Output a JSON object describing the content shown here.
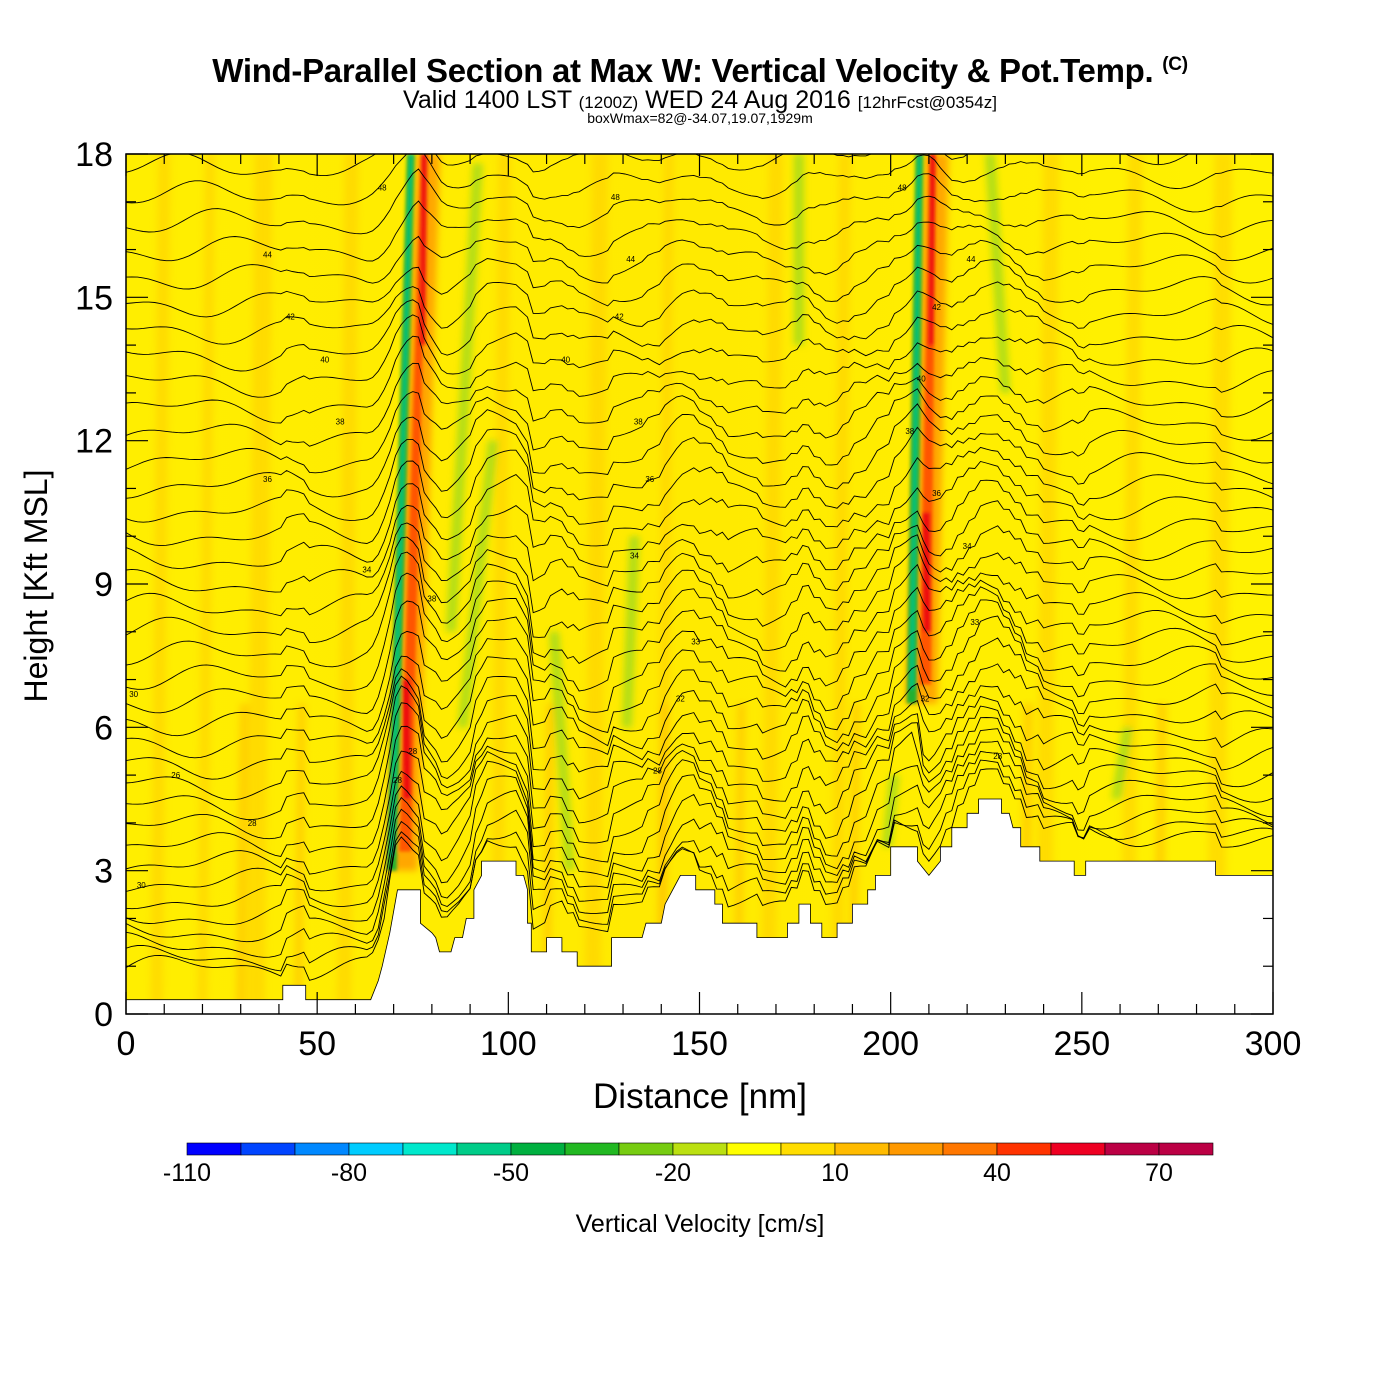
{
  "title": {
    "main": "Wind-Parallel Section at Max W: Vertical Velocity & Pot.Temp.",
    "copyright": "(C)",
    "valid_prefix": "Valid 1400 LST",
    "utc": "(1200Z)",
    "valid_date": "WED 24 Aug 2016",
    "forecast": "[12hrFcst@0354z]",
    "box": "boxWmax=82@-34.07,19.07,1929m"
  },
  "colors": {
    "scale": [
      "#0000ff",
      "#0044ff",
      "#0088ff",
      "#00ccff",
      "#00e8cc",
      "#00cc88",
      "#00b040",
      "#22b822",
      "#77cc11",
      "#bbe011",
      "#ffff00",
      "#ffdd00",
      "#ffbb00",
      "#ff9900",
      "#ff7700",
      "#ff3300",
      "#ee0022",
      "#bb0044"
    ],
    "terrain": "#ffffff",
    "contour": "#000000"
  },
  "chart_data": {
    "type": "heatmap",
    "xlabel": "Distance [nm]",
    "ylabel": "Height [Kft MSL]",
    "xlim": [
      0,
      300
    ],
    "ylim": [
      0,
      18
    ],
    "xticks": [
      0,
      50,
      100,
      150,
      200,
      250,
      300
    ],
    "yticks": [
      0,
      3,
      6,
      9,
      12,
      15,
      18
    ],
    "grid": false,
    "colorbar": {
      "label": "Vertical Velocity [cm/s]",
      "levels": [
        -110,
        -100,
        -90,
        -80,
        -70,
        -60,
        -50,
        -40,
        -30,
        -20,
        -10,
        0,
        10,
        20,
        30,
        40,
        50,
        60,
        70,
        80
      ],
      "tick_labels": [
        "-110",
        "-80",
        "-50",
        "-20",
        "10",
        "40",
        "70"
      ]
    },
    "updrafts": [
      {
        "base_x": 71,
        "base_y": 3,
        "top_x": 77,
        "top_y": 18,
        "max": 82
      },
      {
        "base_x": 207,
        "base_y": 6.5,
        "top_x": 210,
        "top_y": 18,
        "max": 70
      }
    ],
    "terrain": [
      [
        0,
        0.3
      ],
      [
        41,
        0.3
      ],
      [
        41,
        0.6
      ],
      [
        47,
        0.6
      ],
      [
        47,
        0.3
      ],
      [
        64,
        0.3
      ],
      [
        66,
        0.7
      ],
      [
        67,
        1
      ],
      [
        69,
        1.7
      ],
      [
        71,
        2.6
      ],
      [
        77,
        2.6
      ],
      [
        77,
        1.9
      ],
      [
        80,
        1.7
      ],
      [
        81,
        1.6
      ],
      [
        82,
        1.3
      ],
      [
        85,
        1.3
      ],
      [
        86,
        1.6
      ],
      [
        88,
        1.6
      ],
      [
        89,
        2
      ],
      [
        91,
        2
      ],
      [
        91,
        2.6
      ],
      [
        93,
        2.9
      ],
      [
        93,
        3.2
      ],
      [
        102,
        3.2
      ],
      [
        102,
        2.9
      ],
      [
        104,
        2.9
      ],
      [
        105,
        2.6
      ],
      [
        105,
        1.9
      ],
      [
        106,
        1.9
      ],
      [
        106,
        1.3
      ],
      [
        110,
        1.3
      ],
      [
        110,
        1.6
      ],
      [
        114,
        1.6
      ],
      [
        114,
        1.3
      ],
      [
        118,
        1.3
      ],
      [
        118,
        1
      ],
      [
        127,
        1
      ],
      [
        127,
        1.6
      ],
      [
        135,
        1.6
      ],
      [
        136,
        1.9
      ],
      [
        140,
        1.9
      ],
      [
        141,
        2.3
      ],
      [
        145,
        2.9
      ],
      [
        149,
        2.9
      ],
      [
        149,
        2.6
      ],
      [
        154,
        2.6
      ],
      [
        154,
        2.3
      ],
      [
        156,
        2.3
      ],
      [
        156,
        1.9
      ],
      [
        165,
        1.9
      ],
      [
        165,
        1.6
      ],
      [
        173,
        1.6
      ],
      [
        173,
        1.9
      ],
      [
        176,
        1.9
      ],
      [
        176,
        2.3
      ],
      [
        179,
        2.3
      ],
      [
        179,
        1.9
      ],
      [
        182,
        1.9
      ],
      [
        182,
        1.6
      ],
      [
        186,
        1.6
      ],
      [
        186,
        1.9
      ],
      [
        190,
        1.9
      ],
      [
        190,
        2.3
      ],
      [
        194,
        2.3
      ],
      [
        194,
        2.6
      ],
      [
        196,
        2.6
      ],
      [
        196,
        2.9
      ],
      [
        200,
        2.9
      ],
      [
        200,
        3.5
      ],
      [
        207,
        3.5
      ],
      [
        207,
        3.2
      ],
      [
        210,
        2.9
      ],
      [
        213,
        3.2
      ],
      [
        213,
        3.5
      ],
      [
        216,
        3.5
      ],
      [
        216,
        3.9
      ],
      [
        220,
        3.9
      ],
      [
        220,
        4.2
      ],
      [
        223,
        4.2
      ],
      [
        223,
        4.5
      ],
      [
        229,
        4.5
      ],
      [
        229,
        4.2
      ],
      [
        231,
        4.2
      ],
      [
        232,
        3.9
      ],
      [
        234,
        3.9
      ],
      [
        234,
        3.5
      ],
      [
        239,
        3.5
      ],
      [
        239,
        3.2
      ],
      [
        248,
        3.2
      ],
      [
        248,
        2.9
      ],
      [
        251,
        2.9
      ],
      [
        251,
        3.2
      ],
      [
        285,
        3.2
      ],
      [
        285,
        2.9
      ],
      [
        300,
        2.9
      ]
    ],
    "isentrope_labels": [
      {
        "text": "30",
        "x": 2,
        "y": 6.7
      },
      {
        "text": "26",
        "x": 13,
        "y": 5
      },
      {
        "text": "28",
        "x": 33,
        "y": 4
      },
      {
        "text": "30",
        "x": 4,
        "y": 2.7
      },
      {
        "text": "34",
        "x": 63,
        "y": 9.3
      },
      {
        "text": "36",
        "x": 37,
        "y": 11.2
      },
      {
        "text": "38",
        "x": 56,
        "y": 12.4
      },
      {
        "text": "40",
        "x": 52,
        "y": 13.7
      },
      {
        "text": "42",
        "x": 43,
        "y": 14.6
      },
      {
        "text": "44",
        "x": 37,
        "y": 15.9
      },
      {
        "text": "48",
        "x": 67,
        "y": 17.3
      },
      {
        "text": "38",
        "x": 80,
        "y": 8.7
      },
      {
        "text": "28",
        "x": 75,
        "y": 5.5
      },
      {
        "text": "28",
        "x": 71,
        "y": 4.9
      },
      {
        "text": "48",
        "x": 128,
        "y": 17.1
      },
      {
        "text": "44",
        "x": 132,
        "y": 15.8
      },
      {
        "text": "42",
        "x": 129,
        "y": 14.6
      },
      {
        "text": "40",
        "x": 115,
        "y": 13.7
      },
      {
        "text": "38",
        "x": 134,
        "y": 12.4
      },
      {
        "text": "36",
        "x": 137,
        "y": 11.2
      },
      {
        "text": "34",
        "x": 133,
        "y": 9.6
      },
      {
        "text": "33",
        "x": 149,
        "y": 7.8
      },
      {
        "text": "32",
        "x": 145,
        "y": 6.6
      },
      {
        "text": "28",
        "x": 139,
        "y": 5.1
      },
      {
        "text": "48",
        "x": 203,
        "y": 17.3
      },
      {
        "text": "44",
        "x": 221,
        "y": 15.8
      },
      {
        "text": "42",
        "x": 212,
        "y": 14.8
      },
      {
        "text": "40",
        "x": 208,
        "y": 13.3
      },
      {
        "text": "38",
        "x": 205,
        "y": 12.2
      },
      {
        "text": "36",
        "x": 212,
        "y": 10.9
      },
      {
        "text": "34",
        "x": 220,
        "y": 9.8
      },
      {
        "text": "33",
        "x": 222,
        "y": 8.2
      },
      {
        "text": "32",
        "x": 209,
        "y": 6.6
      },
      {
        "text": "28",
        "x": 228,
        "y": 5.4
      }
    ]
  }
}
